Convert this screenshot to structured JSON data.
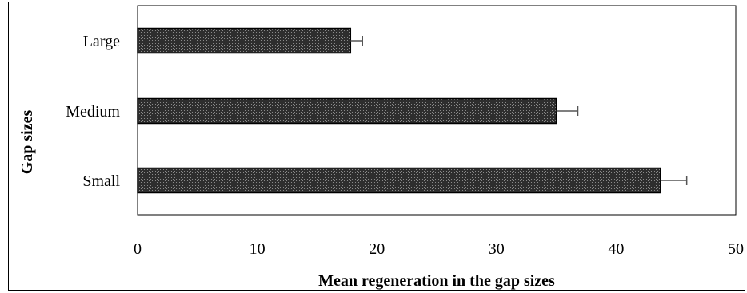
{
  "chart_data": {
    "type": "bar",
    "orientation": "horizontal",
    "categories": [
      "Large",
      "Medium",
      "Small"
    ],
    "values": [
      17.8,
      35.0,
      43.7
    ],
    "errors": [
      1.0,
      1.8,
      2.2
    ],
    "xlabel": "Mean regeneration in the gap sizes",
    "ylabel": "Gap sizes",
    "xlim": [
      0,
      50
    ],
    "xticks": [
      0,
      10,
      20,
      30,
      40,
      50
    ],
    "grid": false,
    "legend": "none",
    "bar_color": "#3a3a3a"
  }
}
